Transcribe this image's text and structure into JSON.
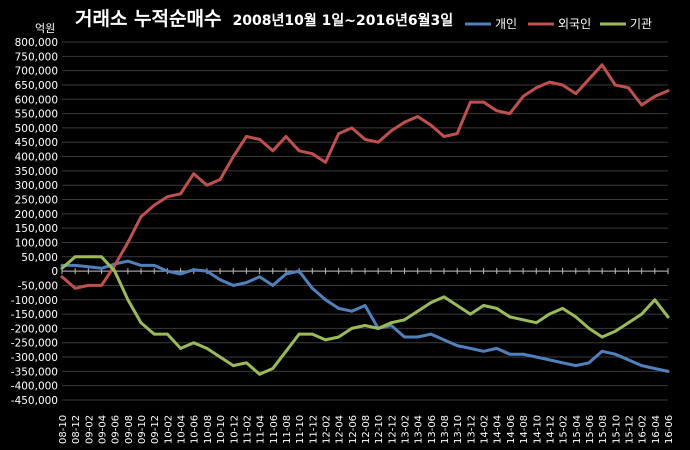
{
  "chart_data": {
    "type": "line",
    "title": "거래소 누적순매수",
    "subtitle": "2008년10월 1일~2016년6월3일",
    "ylabel": "억원",
    "xlabel": "",
    "ylim": [
      -450000,
      800000
    ],
    "ytick_step": 50000,
    "grid": true,
    "legend_position": "top-right",
    "categories": [
      "08-10",
      "08-12",
      "09-02",
      "09-04",
      "09-06",
      "09-08",
      "09-10",
      "09-12",
      "10-02",
      "10-04",
      "10-06",
      "10-08",
      "10-10",
      "10-12",
      "11-02",
      "11-04",
      "11-06",
      "11-08",
      "11-10",
      "11-12",
      "12-02",
      "12-04",
      "12-06",
      "12-08",
      "12-10",
      "12-12",
      "13-02",
      "13-04",
      "13-06",
      "13-08",
      "13-10",
      "13-12",
      "14-02",
      "14-04",
      "14-06",
      "14-08",
      "14-10",
      "14-12",
      "15-02",
      "15-04",
      "15-06",
      "15-08",
      "15-10",
      "15-12",
      "16-02",
      "16-04",
      "16-06"
    ],
    "series": [
      {
        "name": "개인",
        "color": "#4F81BD",
        "values": [
          20000,
          20000,
          15000,
          10000,
          25000,
          35000,
          20000,
          20000,
          0,
          -10000,
          5000,
          0,
          -30000,
          -50000,
          -40000,
          -20000,
          -50000,
          -10000,
          0,
          -60000,
          -100000,
          -130000,
          -140000,
          -120000,
          -200000,
          -190000,
          -230000,
          -230000,
          -220000,
          -240000,
          -260000,
          -270000,
          -280000,
          -270000,
          -290000,
          -290000,
          -300000,
          -310000,
          -320000,
          -330000,
          -320000,
          -280000,
          -290000,
          -310000,
          -330000,
          -340000,
          -350000
        ]
      },
      {
        "name": "외국인",
        "color": "#C0504D",
        "values": [
          -20000,
          -60000,
          -50000,
          -50000,
          20000,
          100000,
          190000,
          230000,
          260000,
          270000,
          340000,
          300000,
          320000,
          400000,
          470000,
          460000,
          420000,
          470000,
          420000,
          410000,
          380000,
          480000,
          500000,
          460000,
          450000,
          490000,
          520000,
          540000,
          510000,
          470000,
          480000,
          590000,
          590000,
          560000,
          550000,
          610000,
          640000,
          660000,
          650000,
          620000,
          670000,
          720000,
          650000,
          640000,
          580000,
          610000,
          630000
        ]
      },
      {
        "name": "기관",
        "color": "#9BBB59",
        "values": [
          10000,
          50000,
          50000,
          50000,
          0,
          -100000,
          -180000,
          -220000,
          -220000,
          -270000,
          -250000,
          -270000,
          -300000,
          -330000,
          -320000,
          -360000,
          -340000,
          -280000,
          -220000,
          -220000,
          -240000,
          -230000,
          -200000,
          -190000,
          -200000,
          -180000,
          -170000,
          -140000,
          -110000,
          -90000,
          -120000,
          -150000,
          -120000,
          -130000,
          -160000,
          -170000,
          -180000,
          -150000,
          -130000,
          -160000,
          -200000,
          -230000,
          -210000,
          -180000,
          -150000,
          -100000,
          -160000
        ]
      }
    ]
  }
}
